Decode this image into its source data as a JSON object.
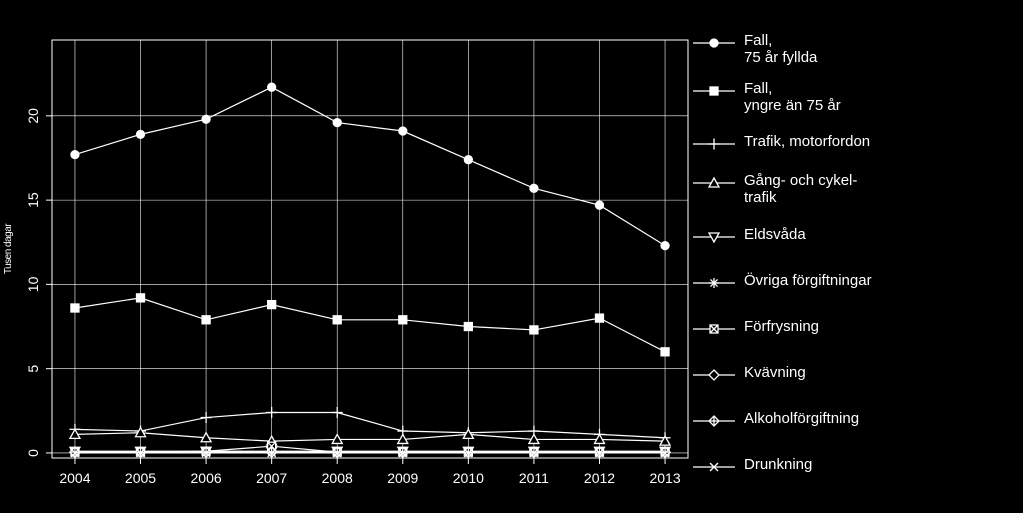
{
  "chart_data": {
    "type": "line",
    "title": "",
    "xlabel": "",
    "ylabel": "Tusen dagar",
    "x": [
      2004,
      2005,
      2006,
      2007,
      2008,
      2009,
      2010,
      2011,
      2012,
      2013
    ],
    "xlim": [
      2003.65,
      2013.35
    ],
    "ylim": [
      -0.3,
      24.5
    ],
    "yticks": [
      0,
      5,
      10,
      15,
      20
    ],
    "grid": true,
    "legend_position": "right",
    "series": [
      {
        "name": "Fall,\n75 år fyllda",
        "marker": "circle",
        "values": [
          17.7,
          18.9,
          19.8,
          21.7,
          19.6,
          19.1,
          17.4,
          15.7,
          14.7,
          12.3
        ]
      },
      {
        "name": "Fall,\nyngre än 75 år",
        "marker": "square",
        "values": [
          8.6,
          9.2,
          7.9,
          8.8,
          7.9,
          7.9,
          7.5,
          7.3,
          8.0,
          6.0
        ]
      },
      {
        "name": "Trafik, motorfordon",
        "marker": "plus",
        "values": [
          1.4,
          1.3,
          2.1,
          2.4,
          2.4,
          1.3,
          1.2,
          1.3,
          1.1,
          0.9
        ]
      },
      {
        "name": "Gång- och cykel-\ntrafik",
        "marker": "triangle-up",
        "values": [
          1.1,
          1.2,
          0.9,
          0.7,
          0.8,
          0.8,
          1.1,
          0.8,
          0.8,
          0.7
        ]
      },
      {
        "name": "Eldsvåda",
        "marker": "triangle-down",
        "values": [
          0.1,
          0.1,
          0.1,
          0.1,
          0.1,
          0.1,
          0.1,
          0.1,
          0.1,
          0.1
        ]
      },
      {
        "name": "Övriga förgiftningar",
        "marker": "asterisk",
        "values": [
          0.05,
          0.05,
          0.05,
          0.05,
          0.05,
          0.05,
          0.05,
          0.05,
          0.05,
          0.05
        ]
      },
      {
        "name": "Förfrysning",
        "marker": "square-x",
        "values": [
          0.05,
          0.05,
          0.1,
          0.4,
          0.05,
          0.05,
          0.05,
          0.05,
          0.05,
          0.05
        ]
      },
      {
        "name": "Kvävning",
        "marker": "diamond",
        "values": [
          0.05,
          0.05,
          0.05,
          0.05,
          0.05,
          0.05,
          0.05,
          0.05,
          0.05,
          0.05
        ]
      },
      {
        "name": "Alkoholförgiftning",
        "marker": "diamond-plus",
        "values": [
          0.05,
          0.05,
          0.05,
          0.05,
          0.05,
          0.05,
          0.05,
          0.05,
          0.05,
          0.05
        ]
      },
      {
        "name": "Drunkning",
        "marker": "x",
        "values": [
          0.0,
          0.0,
          0.0,
          0.0,
          0.0,
          0.0,
          0.0,
          0.0,
          0.0,
          0.0
        ]
      }
    ],
    "colors": {
      "background": "#000000",
      "foreground": "#ffffff"
    }
  }
}
